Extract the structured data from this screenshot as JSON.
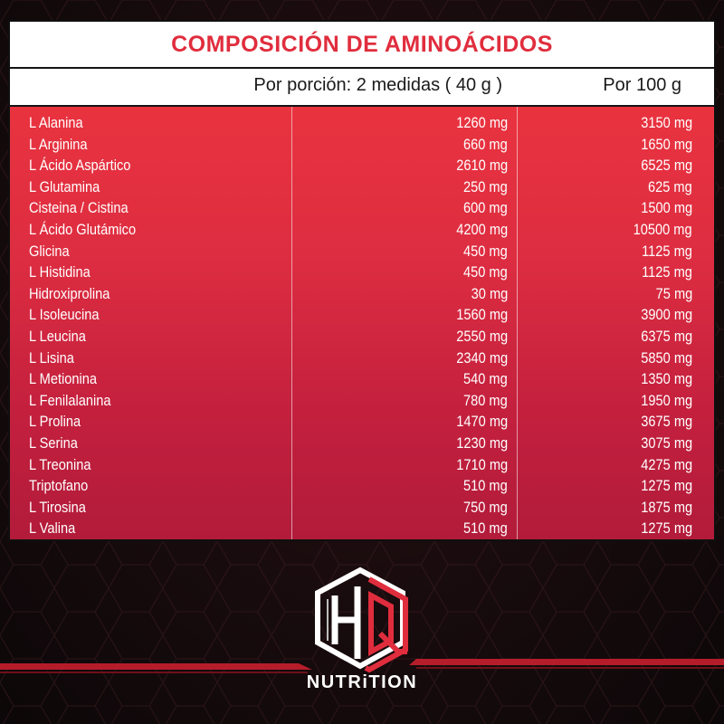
{
  "title": "COMPOSICIÓN DE AMINOÁCIDOS",
  "header": {
    "per_serving": "Por porción: 2 medidas ( 40 g )",
    "per_100g": "Por 100 g"
  },
  "rows": [
    {
      "name": "L Alanina",
      "serving": "1260 mg",
      "per100": "3150 mg"
    },
    {
      "name": "L Arginina",
      "serving": "660 mg",
      "per100": "1650 mg"
    },
    {
      "name": "L Ácido Aspártico",
      "serving": "2610 mg",
      "per100": "6525 mg"
    },
    {
      "name": "L Glutamina",
      "serving": "250 mg",
      "per100": "625 mg"
    },
    {
      "name": "Cisteina / Cistina",
      "serving": "600 mg",
      "per100": "1500 mg"
    },
    {
      "name": "L Ácido Glutámico",
      "serving": "4200 mg",
      "per100": "10500 mg"
    },
    {
      "name": "Glicina",
      "serving": "450 mg",
      "per100": "1125 mg"
    },
    {
      "name": "L Histidina",
      "serving": "450 mg",
      "per100": "1125 mg"
    },
    {
      "name": "Hidroxiprolina",
      "serving": "30 mg",
      "per100": "75 mg"
    },
    {
      "name": "L Isoleucina",
      "serving": "1560 mg",
      "per100": "3900 mg"
    },
    {
      "name": "L Leucina",
      "serving": "2550 mg",
      "per100": "6375 mg"
    },
    {
      "name": "L Lisina",
      "serving": "2340 mg",
      "per100": "5850 mg"
    },
    {
      "name": "L Metionina",
      "serving": "540 mg",
      "per100": "1350 mg"
    },
    {
      "name": "L Fenilalanina",
      "serving": "780 mg",
      "per100": "1950 mg"
    },
    {
      "name": "L Prolina",
      "serving": "1470 mg",
      "per100": "3675 mg"
    },
    {
      "name": "L Serina",
      "serving": "1230 mg",
      "per100": "3075 mg"
    },
    {
      "name": "L Treonina",
      "serving": "1710 mg",
      "per100": "4275 mg"
    },
    {
      "name": "Triptofano",
      "serving": "510 mg",
      "per100": "1275 mg"
    },
    {
      "name": "L Tirosina",
      "serving": "750 mg",
      "per100": "1875 mg"
    },
    {
      "name": "L Valina",
      "serving": "510 mg",
      "per100": "1275 mg"
    }
  ],
  "brand": {
    "name": "NUTRiTION",
    "logo_letters": "HQ"
  },
  "colors": {
    "accent_red": "#e02d3d",
    "table_red_top": "#e9333f",
    "table_red_bottom": "#b21b3a",
    "background": "#170b0d"
  }
}
